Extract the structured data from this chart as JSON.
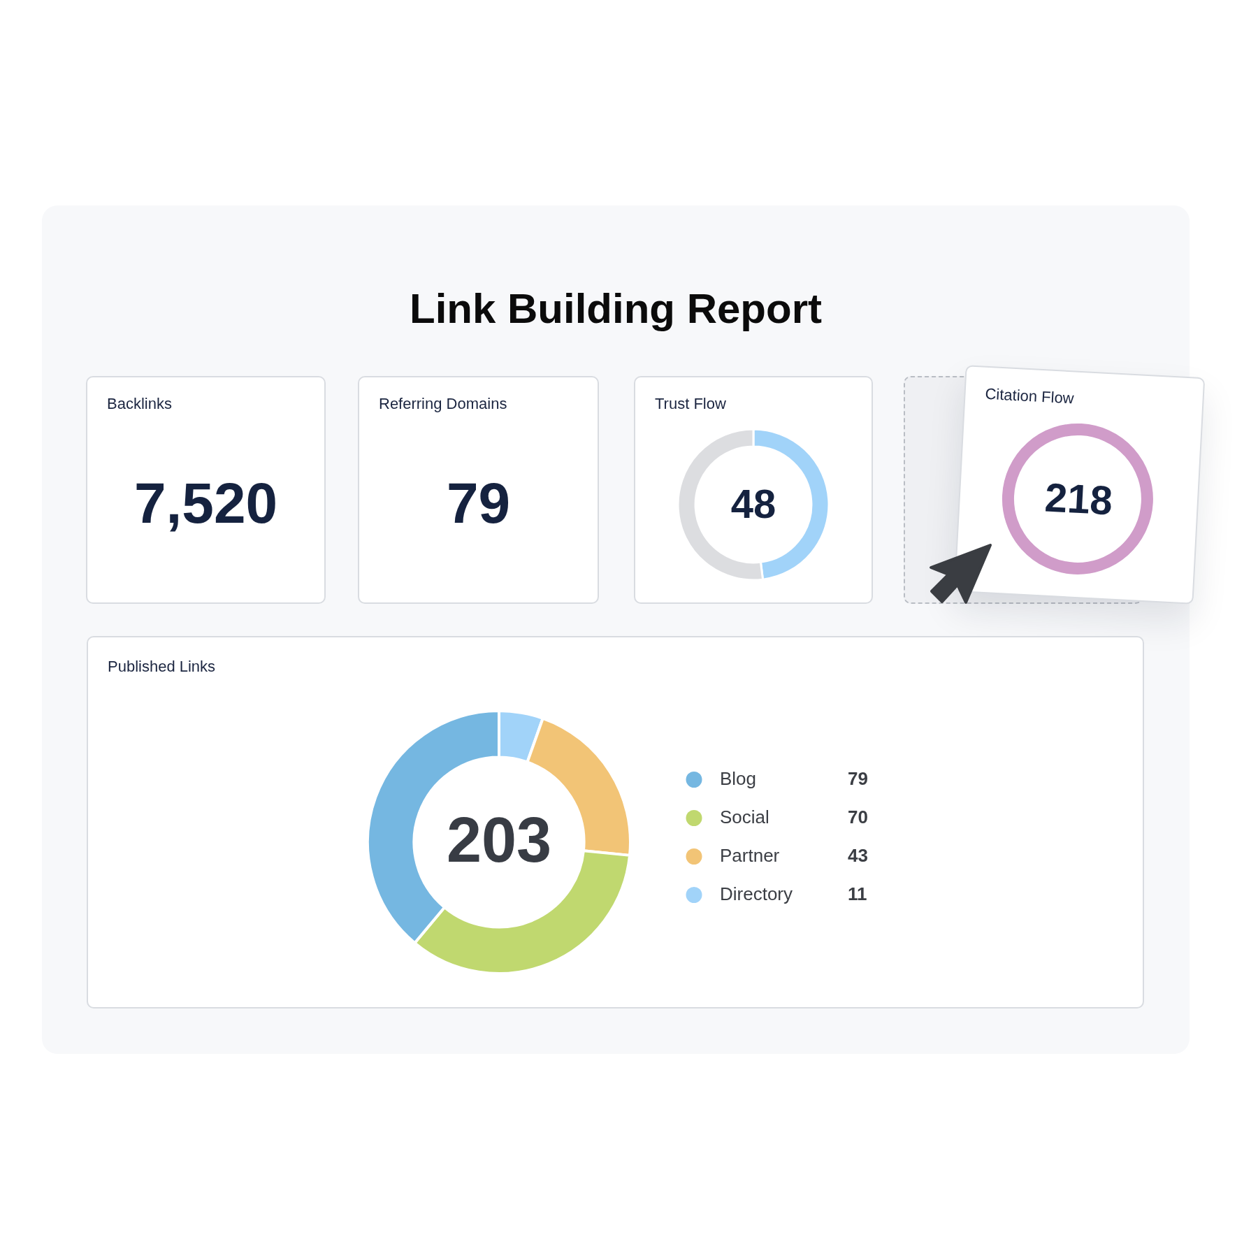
{
  "chart_data": [
    {
      "type": "other",
      "title": "Link Building Report"
    },
    {
      "type": "other",
      "title": "Backlinks",
      "annotations": [
        "7,520"
      ]
    },
    {
      "type": "other",
      "title": "Referring Domains",
      "annotations": [
        "79"
      ]
    },
    {
      "type": "donut",
      "title": "Trust Flow",
      "categories": [
        null,
        null
      ],
      "values": [
        48,
        52
      ],
      "colors": [
        "#a1d3f9",
        "#dcdde0"
      ],
      "value_labels": [
        "48",
        null
      ]
    },
    {
      "type": "other",
      "title": "Citation Flow",
      "annotations": [
        "218"
      ]
    },
    {
      "type": "donut",
      "title": "Published Links",
      "categories": [
        "Blog",
        "Social",
        "Partner",
        "Directory"
      ],
      "values": [
        79,
        70,
        43,
        11
      ],
      "colors": [
        "#75b7e1",
        "#c0d86f",
        "#f2c476",
        "#a1d3f9"
      ],
      "annotations": [
        "203"
      ],
      "legend": "right",
      "data_labels": true
    }
  ]
}
